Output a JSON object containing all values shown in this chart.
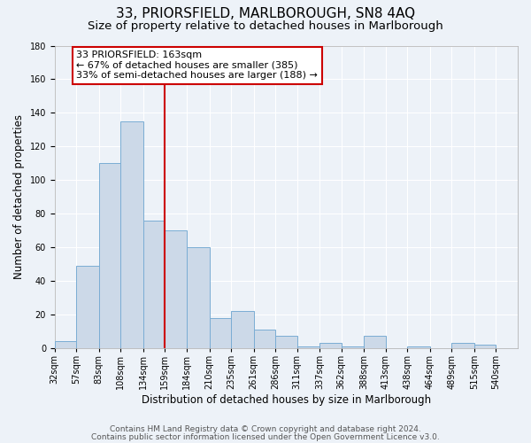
{
  "title": "33, PRIORSFIELD, MARLBOROUGH, SN8 4AQ",
  "subtitle": "Size of property relative to detached houses in Marlborough",
  "xlabel": "Distribution of detached houses by size in Marlborough",
  "ylabel": "Number of detached properties",
  "bar_color": "#ccd9e8",
  "bar_edge_color": "#7aadd4",
  "bin_edges": [
    32,
    57,
    83,
    108,
    134,
    159,
    184,
    210,
    235,
    261,
    286,
    311,
    337,
    362,
    388,
    413,
    438,
    464,
    489,
    515,
    540
  ],
  "counts": [
    4,
    49,
    110,
    135,
    76,
    70,
    60,
    18,
    22,
    11,
    7,
    1,
    3,
    1,
    7,
    0,
    1,
    0,
    3,
    2
  ],
  "vline_x": 159,
  "vline_color": "#cc0000",
  "annotation_text": "33 PRIORSFIELD: 163sqm\n← 67% of detached houses are smaller (385)\n33% of semi-detached houses are larger (188) →",
  "annotation_box_color": "#ffffff",
  "annotation_box_edge_color": "#cc0000",
  "ylim": [
    0,
    180
  ],
  "yticks": [
    0,
    20,
    40,
    60,
    80,
    100,
    120,
    140,
    160,
    180
  ],
  "footer1": "Contains HM Land Registry data © Crown copyright and database right 2024.",
  "footer2": "Contains public sector information licensed under the Open Government Licence v3.0.",
  "background_color": "#edf2f8",
  "plot_background_color": "#edf2f8",
  "grid_color": "#ffffff",
  "title_fontsize": 11,
  "subtitle_fontsize": 9.5,
  "axis_label_fontsize": 8.5,
  "tick_fontsize": 7,
  "footer_fontsize": 6.5,
  "annotation_fontsize": 8
}
